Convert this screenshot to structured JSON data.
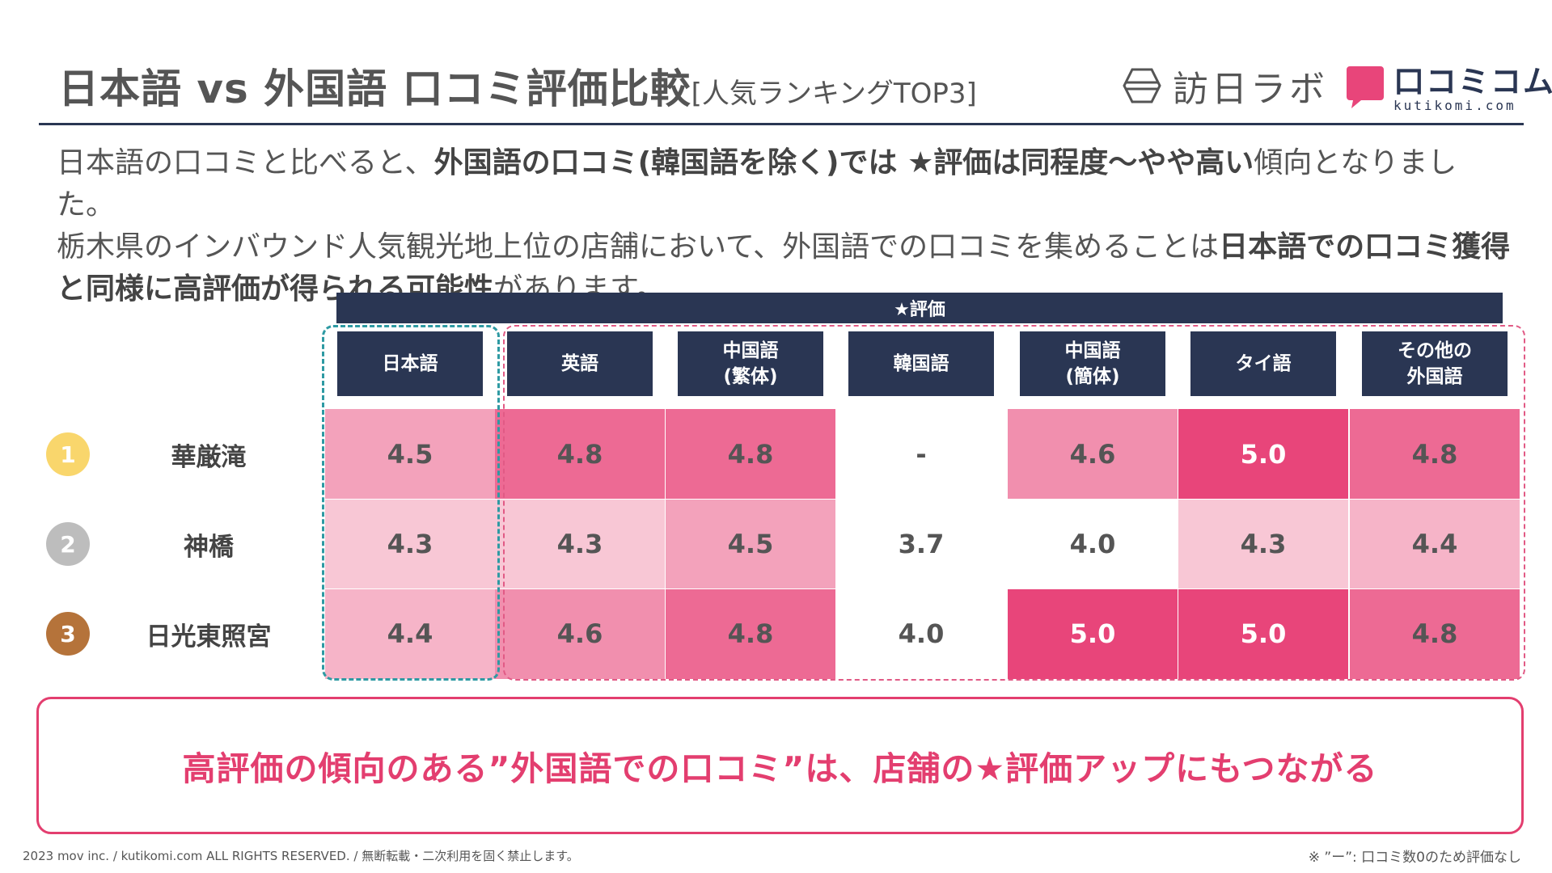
{
  "header": {
    "title": "日本語 vs 外国語 口コミ評価比較",
    "subtitle": "[人気ランキングTOP3]",
    "logo_houjin": "訪日ラボ",
    "logo_kutikomi_jp": "口コミコム",
    "logo_kutikomi_en": "kutikomi.com"
  },
  "intro": {
    "p1": "日本語の口コミと比べると、",
    "b1": "外国語の口コミ(韓国語を除く)では ★評価は同程度〜やや高い",
    "p2": "傾向となりました。",
    "p3": "栃木県のインバウンド人気観光地上位の店舗において、外国語での口コミを集めることは",
    "b2": "日本語での口コミ獲得と同様に高評価が得られる可能性",
    "p4": "があります。"
  },
  "table": {
    "rating_header": "★評価",
    "columns": [
      {
        "line1": "日本語",
        "line2": ""
      },
      {
        "line1": "英語",
        "line2": ""
      },
      {
        "line1": "中国語",
        "line2": "(繁体)"
      },
      {
        "line1": "韓国語",
        "line2": ""
      },
      {
        "line1": "中国語",
        "line2": "(簡体)"
      },
      {
        "line1": "タイ語",
        "line2": ""
      },
      {
        "line1": "その他の",
        "line2": "外国語"
      }
    ],
    "rows": [
      {
        "rank": "1",
        "name": "華厳滝",
        "rank_color": "#f9d66c",
        "values": [
          "4.5",
          "4.8",
          "4.8",
          "-",
          "4.6",
          "5.0",
          "4.8"
        ]
      },
      {
        "rank": "2",
        "name": "神橋",
        "rank_color": "#bdbdbd",
        "values": [
          "4.3",
          "4.3",
          "4.5",
          "3.7",
          "4.0",
          "4.3",
          "4.4"
        ]
      },
      {
        "rank": "3",
        "name": "日光東照宮",
        "rank_color": "#b5733a",
        "values": [
          "4.4",
          "4.6",
          "4.8",
          "4.0",
          "5.0",
          "5.0",
          "4.8"
        ]
      }
    ],
    "colors": {
      "header": "#2a3653",
      "scale_low": "#f8c7d5",
      "scale_high": "#e8457a"
    }
  },
  "callout": "高評価の傾向のある”外国語での口コミ”は、店舗の★評価アップにもつながる",
  "footer": "2023 mov inc. / kutikomi.com ALL RIGHTS RESERVED. / 無断転載・二次利用を固く禁止します。",
  "note": "※ ”ー”: 口コミ数0のため評価なし"
}
